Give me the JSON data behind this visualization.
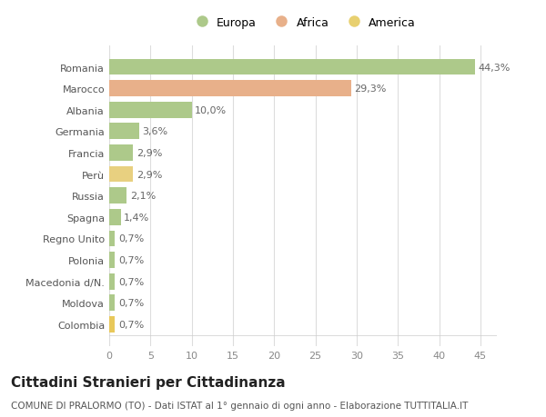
{
  "categories": [
    "Romania",
    "Marocco",
    "Albania",
    "Germania",
    "Francia",
    "Perù",
    "Russia",
    "Spagna",
    "Regno Unito",
    "Polonia",
    "Macedonia d/N.",
    "Moldova",
    "Colombia"
  ],
  "values": [
    44.3,
    29.3,
    10.0,
    3.6,
    2.9,
    2.9,
    2.1,
    1.4,
    0.7,
    0.7,
    0.7,
    0.7,
    0.7
  ],
  "labels": [
    "44,3%",
    "29,3%",
    "10,0%",
    "3,6%",
    "2,9%",
    "2,9%",
    "2,1%",
    "1,4%",
    "0,7%",
    "0,7%",
    "0,7%",
    "0,7%",
    "0,7%"
  ],
  "colors": [
    "#adc98a",
    "#e8b08a",
    "#adc98a",
    "#adc98a",
    "#adc98a",
    "#e8d080",
    "#adc98a",
    "#adc98a",
    "#adc98a",
    "#adc98a",
    "#adc98a",
    "#adc98a",
    "#e8c85a"
  ],
  "legend_labels": [
    "Europa",
    "Africa",
    "America"
  ],
  "legend_colors": [
    "#adc98a",
    "#e8b08a",
    "#e8d070"
  ],
  "title": "Cittadini Stranieri per Cittadinanza",
  "subtitle": "COMUNE DI PRALORMO (TO) - Dati ISTAT al 1° gennaio di ogni anno - Elaborazione TUTTITALIA.IT",
  "xlim": [
    0,
    47
  ],
  "xticks": [
    0,
    5,
    10,
    15,
    20,
    25,
    30,
    35,
    40,
    45
  ],
  "background_color": "#ffffff",
  "plot_bg_color": "#ffffff",
  "grid_color": "#dddddd",
  "bar_height": 0.75,
  "label_fontsize": 8,
  "tick_fontsize": 8,
  "ytick_fontsize": 8,
  "title_fontsize": 11,
  "subtitle_fontsize": 7.5,
  "legend_fontsize": 9
}
